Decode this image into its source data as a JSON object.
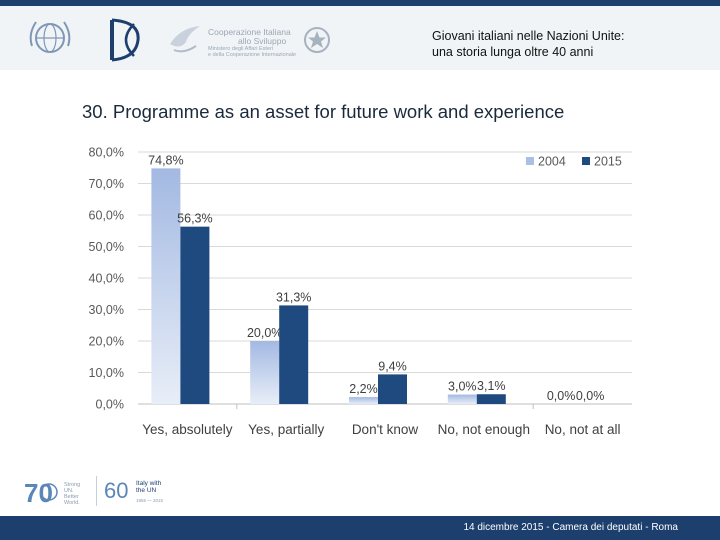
{
  "header": {
    "line1": "Giovani italiani nelle Nazioni Unite:",
    "line2": "una storia lunga oltre 40 anni",
    "logo_left_1": "un-emblem-icon",
    "logo_left_2": "ministry-monogram-icon",
    "logo_coop_line1": "Cooperazione Italiana",
    "logo_coop_line2": "allo Sviluppo",
    "logo_coop_line3": "Ministero degli Affari Esteri",
    "logo_coop_line4": "e della Cooperazione Internazionale",
    "logo_right": "italian-emblem-icon"
  },
  "title": "30. Programme as an asset for future work and experience",
  "colors": {
    "series_2004": "#a9bfe6",
    "series_2015": "#1f4a7f",
    "header_bar": "#1c3f6e",
    "grid": "#d9d9d9"
  },
  "chart_data": {
    "type": "bar",
    "categories": [
      "Yes, absolutely",
      "Yes, partially",
      "Don't know",
      "No, not enough",
      "No, not at all"
    ],
    "series": [
      {
        "name": "2004",
        "values": [
          74.8,
          20.0,
          2.2,
          3.0,
          0.0
        ],
        "labels": [
          "74,8%",
          "20,0%",
          "2,2%",
          "3,0%",
          "0,0%"
        ]
      },
      {
        "name": "2015",
        "values": [
          56.3,
          31.3,
          9.4,
          3.1,
          0.0
        ],
        "labels": [
          "56,3%",
          "31,3%",
          "9,4%",
          "3,1%",
          "0,0%"
        ]
      }
    ],
    "yticks": [
      "0,0%",
      "10,0%",
      "20,0%",
      "30,0%",
      "40,0%",
      "50,0%",
      "60,0%",
      "70,0%",
      "80,0%"
    ],
    "ylim": [
      0,
      80
    ],
    "grid": true,
    "legend": "top-right"
  },
  "footer": {
    "text": "14 dicembre 2015 - Camera dei deputati - Roma",
    "logo1_num": "70",
    "logo1_text": "Strong UN. Better World.",
    "logo2_num": "60",
    "logo2_line1": "Italy with",
    "logo2_line2": "the UN",
    "logo2_years": "1955 — 2015"
  }
}
